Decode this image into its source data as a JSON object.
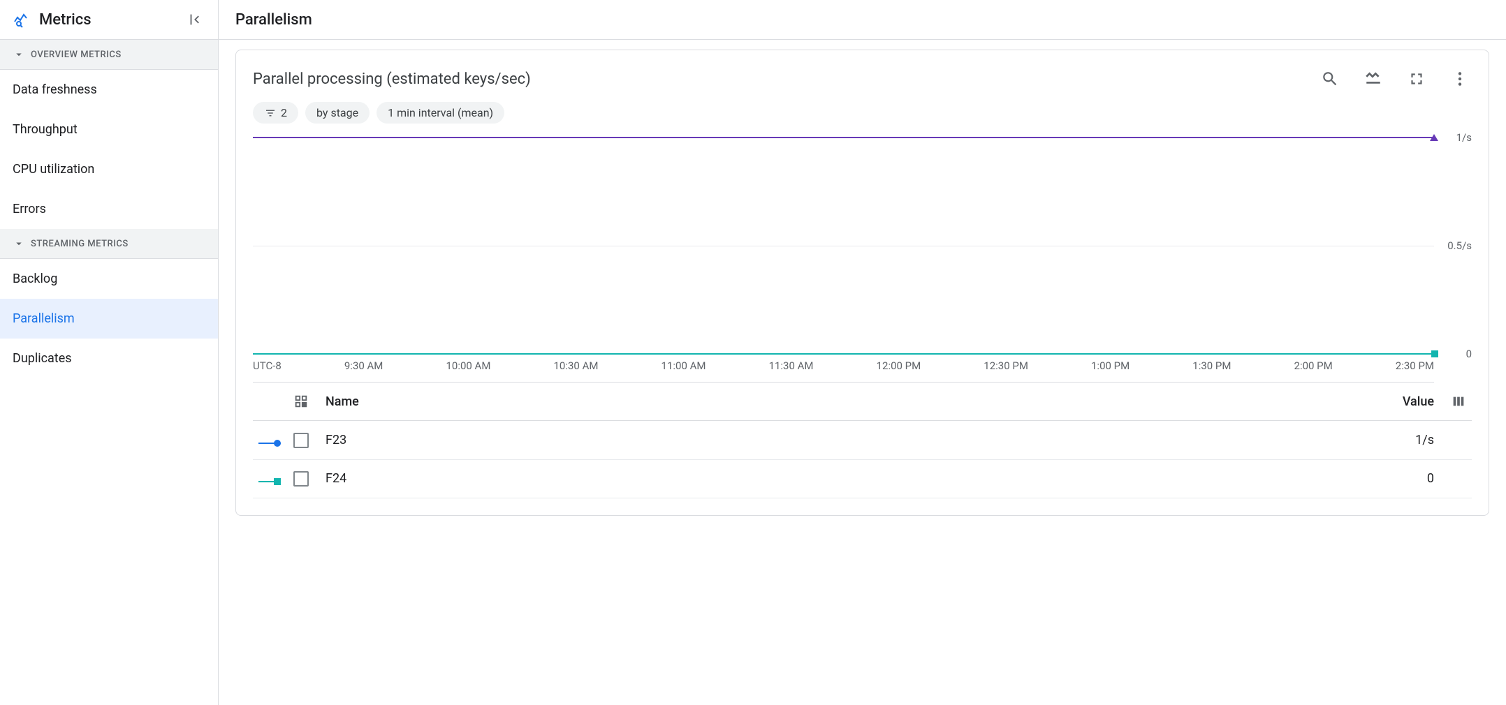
{
  "sidebar": {
    "title": "Metrics",
    "sections": [
      {
        "label": "OVERVIEW METRICS",
        "items": [
          {
            "label": "Data freshness",
            "active": false
          },
          {
            "label": "Throughput",
            "active": false
          },
          {
            "label": "CPU utilization",
            "active": false
          },
          {
            "label": "Errors",
            "active": false
          }
        ]
      },
      {
        "label": "STREAMING METRICS",
        "items": [
          {
            "label": "Backlog",
            "active": false
          },
          {
            "label": "Parallelism",
            "active": true
          },
          {
            "label": "Duplicates",
            "active": false
          }
        ]
      }
    ]
  },
  "page": {
    "title": "Parallelism"
  },
  "chart": {
    "title": "Parallel processing (estimated keys/sec)",
    "chips": {
      "filter_count": "2",
      "group": "by stage",
      "interval": "1 min interval (mean)"
    },
    "type": "line",
    "timezone": "UTC-8",
    "x_ticks": [
      "9:30 AM",
      "10:00 AM",
      "10:30 AM",
      "11:00 AM",
      "11:30 AM",
      "12:00 PM",
      "12:30 PM",
      "1:00 PM",
      "1:30 PM",
      "2:00 PM",
      "2:30 PM"
    ],
    "y_ticks": [
      {
        "label": "1/s",
        "value": 1,
        "pos_pct": 0
      },
      {
        "label": "0.5/s",
        "value": 0.5,
        "pos_pct": 50
      },
      {
        "label": "0",
        "value": 0,
        "pos_pct": 100
      }
    ],
    "ylim": [
      0,
      1
    ],
    "gridline_color": "#e8eaed",
    "background_color": "#ffffff",
    "series": [
      {
        "name": "F23",
        "color": "#673ab7",
        "legend_color": "#1a73e8",
        "marker": "triangle",
        "value_label": "1/s",
        "y_pos_pct": 0
      },
      {
        "name": "F24",
        "color": "#12b5af",
        "legend_color": "#12b5af",
        "marker": "square",
        "value_label": "0",
        "y_pos_pct": 100
      }
    ],
    "table": {
      "columns": {
        "name": "Name",
        "value": "Value"
      }
    }
  }
}
